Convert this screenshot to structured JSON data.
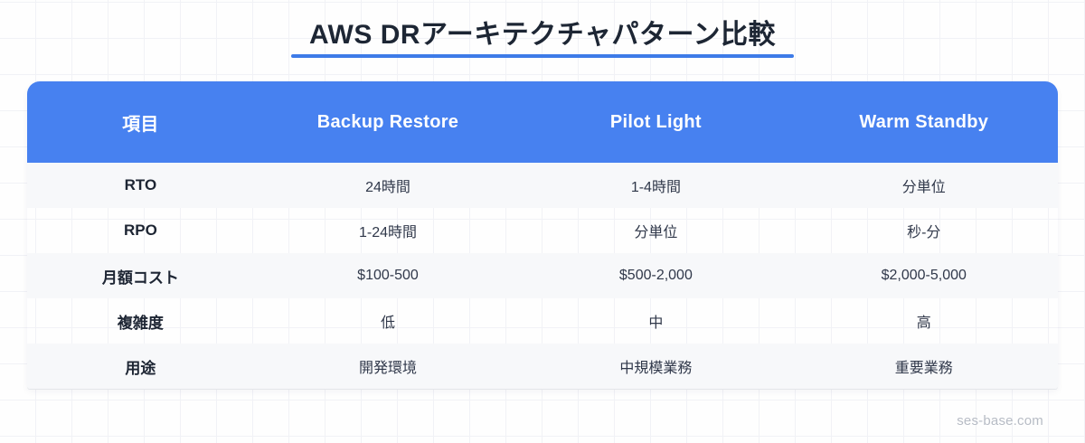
{
  "page": {
    "watermark": "ses-base.com"
  },
  "colors": {
    "header_bg": "#4781f0",
    "header_text": "#ffffff",
    "title_text": "#1d2634",
    "title_underline": "#3d7be8",
    "row_alt_bg": "#f7f8fa",
    "row_label_text": "#1d2533",
    "cell_text": "#30384a",
    "watermark_text": "#b7bcc5",
    "page_grid_line": "#f1f2f6"
  },
  "chart_data": {
    "type": "table",
    "title": "AWS DRアーキテクチャパターン比較",
    "columns": [
      "項目",
      "Backup Restore",
      "Pilot Light",
      "Warm Standby"
    ],
    "rows": [
      {
        "label": "RTO",
        "values": [
          "24時間",
          "1-4時間",
          "分単位"
        ]
      },
      {
        "label": "RPO",
        "values": [
          "1-24時間",
          "分単位",
          "秒-分"
        ]
      },
      {
        "label": "月額コスト",
        "values": [
          "$100-500",
          "$500-2,000",
          "$2,000-5,000"
        ]
      },
      {
        "label": "複雑度",
        "values": [
          "低",
          "中",
          "高"
        ]
      },
      {
        "label": "用途",
        "values": [
          "開発環境",
          "中規模業務",
          "重要業務"
        ]
      }
    ],
    "layout_hints": {
      "header_style": "solid blue bar, white text, rounded top corners",
      "zebra_striping": "odd data rows light gray, even rows transparent over page grid",
      "column_widths_pct": [
        22,
        26,
        26,
        26
      ]
    }
  }
}
